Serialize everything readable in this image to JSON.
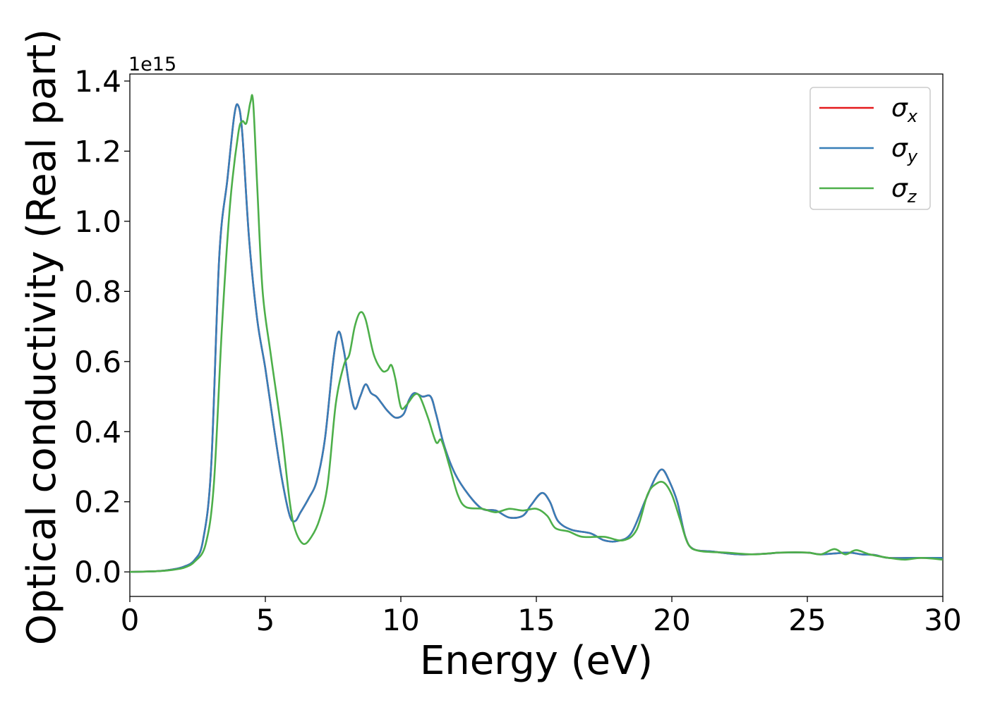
{
  "chart_data": {
    "type": "line",
    "xlabel": "Energy (eV)",
    "ylabel": "Optical conductivity (Real part)",
    "y_offset_label": "1e15",
    "xlim": [
      0,
      30
    ],
    "ylim": [
      -0.07,
      1.42
    ],
    "x_ticks": [
      0,
      5,
      10,
      15,
      20,
      25,
      30
    ],
    "x_tick_labels": [
      "0",
      "5",
      "10",
      "15",
      "20",
      "25",
      "30"
    ],
    "y_ticks": [
      0.0,
      0.2,
      0.4,
      0.6,
      0.8,
      1.0,
      1.2,
      1.4
    ],
    "y_tick_labels": [
      "0.0",
      "0.2",
      "0.4",
      "0.6",
      "0.8",
      "1.0",
      "1.2",
      "1.4"
    ],
    "grid": false,
    "legend_position": "top-right",
    "series": [
      {
        "name": "σx",
        "symbol": "σ",
        "subscript": "x",
        "color": "#e41a1c",
        "points": [
          [
            0,
            0
          ],
          [
            1,
            0.002
          ],
          [
            1.5,
            0.006
          ],
          [
            2,
            0.015
          ],
          [
            2.4,
            0.035
          ],
          [
            2.7,
            0.09
          ],
          [
            3,
            0.3
          ],
          [
            3.3,
            0.9
          ],
          [
            3.6,
            1.12
          ],
          [
            3.85,
            1.3
          ],
          [
            4,
            1.33
          ],
          [
            4.15,
            1.25
          ],
          [
            4.4,
            0.95
          ],
          [
            4.7,
            0.72
          ],
          [
            5,
            0.58
          ],
          [
            5.3,
            0.42
          ],
          [
            5.6,
            0.27
          ],
          [
            5.9,
            0.16
          ],
          [
            6.1,
            0.145
          ],
          [
            6.3,
            0.17
          ],
          [
            6.6,
            0.21
          ],
          [
            6.9,
            0.26
          ],
          [
            7.2,
            0.38
          ],
          [
            7.5,
            0.6
          ],
          [
            7.7,
            0.685
          ],
          [
            7.9,
            0.63
          ],
          [
            8.1,
            0.53
          ],
          [
            8.3,
            0.465
          ],
          [
            8.5,
            0.5
          ],
          [
            8.7,
            0.535
          ],
          [
            8.9,
            0.51
          ],
          [
            9.1,
            0.5
          ],
          [
            9.3,
            0.48
          ],
          [
            9.5,
            0.46
          ],
          [
            9.8,
            0.44
          ],
          [
            10.1,
            0.45
          ],
          [
            10.3,
            0.49
          ],
          [
            10.5,
            0.51
          ],
          [
            10.8,
            0.5
          ],
          [
            11.1,
            0.5
          ],
          [
            11.3,
            0.45
          ],
          [
            11.6,
            0.36
          ],
          [
            12,
            0.28
          ],
          [
            12.5,
            0.22
          ],
          [
            13,
            0.18
          ],
          [
            13.5,
            0.175
          ],
          [
            14,
            0.155
          ],
          [
            14.5,
            0.16
          ],
          [
            14.8,
            0.19
          ],
          [
            15.2,
            0.225
          ],
          [
            15.5,
            0.2
          ],
          [
            15.8,
            0.145
          ],
          [
            16.3,
            0.12
          ],
          [
            17,
            0.11
          ],
          [
            17.5,
            0.09
          ],
          [
            18,
            0.088
          ],
          [
            18.5,
            0.11
          ],
          [
            19,
            0.2
          ],
          [
            19.4,
            0.27
          ],
          [
            19.65,
            0.292
          ],
          [
            19.9,
            0.26
          ],
          [
            20.2,
            0.2
          ],
          [
            20.5,
            0.1
          ],
          [
            20.8,
            0.065
          ],
          [
            21.5,
            0.058
          ],
          [
            22.5,
            0.05
          ],
          [
            23.5,
            0.052
          ],
          [
            24,
            0.055
          ],
          [
            25,
            0.055
          ],
          [
            25.5,
            0.05
          ],
          [
            26.5,
            0.055
          ],
          [
            27,
            0.05
          ],
          [
            27.5,
            0.048
          ],
          [
            28,
            0.04
          ],
          [
            29,
            0.04
          ],
          [
            30,
            0.04
          ]
        ]
      },
      {
        "name": "σy",
        "symbol": "σ",
        "subscript": "y",
        "color": "#377eb8",
        "points": [
          [
            0,
            0
          ],
          [
            1,
            0.002
          ],
          [
            1.5,
            0.006
          ],
          [
            2,
            0.015
          ],
          [
            2.4,
            0.035
          ],
          [
            2.7,
            0.09
          ],
          [
            3,
            0.3
          ],
          [
            3.3,
            0.9
          ],
          [
            3.6,
            1.12
          ],
          [
            3.85,
            1.3
          ],
          [
            4,
            1.33
          ],
          [
            4.15,
            1.25
          ],
          [
            4.4,
            0.95
          ],
          [
            4.7,
            0.72
          ],
          [
            5,
            0.58
          ],
          [
            5.3,
            0.42
          ],
          [
            5.6,
            0.27
          ],
          [
            5.9,
            0.16
          ],
          [
            6.1,
            0.145
          ],
          [
            6.3,
            0.17
          ],
          [
            6.6,
            0.21
          ],
          [
            6.9,
            0.26
          ],
          [
            7.2,
            0.38
          ],
          [
            7.5,
            0.6
          ],
          [
            7.7,
            0.685
          ],
          [
            7.9,
            0.63
          ],
          [
            8.1,
            0.53
          ],
          [
            8.3,
            0.465
          ],
          [
            8.5,
            0.5
          ],
          [
            8.7,
            0.535
          ],
          [
            8.9,
            0.51
          ],
          [
            9.1,
            0.5
          ],
          [
            9.3,
            0.48
          ],
          [
            9.5,
            0.46
          ],
          [
            9.8,
            0.44
          ],
          [
            10.1,
            0.45
          ],
          [
            10.3,
            0.49
          ],
          [
            10.5,
            0.51
          ],
          [
            10.8,
            0.5
          ],
          [
            11.1,
            0.5
          ],
          [
            11.3,
            0.45
          ],
          [
            11.6,
            0.36
          ],
          [
            12,
            0.28
          ],
          [
            12.5,
            0.22
          ],
          [
            13,
            0.18
          ],
          [
            13.5,
            0.175
          ],
          [
            14,
            0.155
          ],
          [
            14.5,
            0.16
          ],
          [
            14.8,
            0.19
          ],
          [
            15.2,
            0.225
          ],
          [
            15.5,
            0.2
          ],
          [
            15.8,
            0.145
          ],
          [
            16.3,
            0.12
          ],
          [
            17,
            0.11
          ],
          [
            17.5,
            0.09
          ],
          [
            18,
            0.088
          ],
          [
            18.5,
            0.11
          ],
          [
            19,
            0.2
          ],
          [
            19.4,
            0.27
          ],
          [
            19.65,
            0.292
          ],
          [
            19.9,
            0.26
          ],
          [
            20.2,
            0.2
          ],
          [
            20.5,
            0.1
          ],
          [
            20.8,
            0.065
          ],
          [
            21.5,
            0.058
          ],
          [
            22.5,
            0.05
          ],
          [
            23.5,
            0.052
          ],
          [
            24,
            0.055
          ],
          [
            25,
            0.055
          ],
          [
            25.5,
            0.05
          ],
          [
            26.5,
            0.055
          ],
          [
            27,
            0.05
          ],
          [
            27.5,
            0.048
          ],
          [
            28,
            0.04
          ],
          [
            29,
            0.04
          ],
          [
            30,
            0.04
          ]
        ]
      },
      {
        "name": "σz",
        "symbol": "σ",
        "subscript": "z",
        "color": "#4daf4a",
        "points": [
          [
            0,
            0
          ],
          [
            1,
            0.002
          ],
          [
            1.5,
            0.005
          ],
          [
            2,
            0.012
          ],
          [
            2.4,
            0.03
          ],
          [
            2.8,
            0.08
          ],
          [
            3.1,
            0.25
          ],
          [
            3.4,
            0.7
          ],
          [
            3.7,
            1.05
          ],
          [
            4,
            1.25
          ],
          [
            4.15,
            1.285
          ],
          [
            4.3,
            1.28
          ],
          [
            4.45,
            1.34
          ],
          [
            4.55,
            1.34
          ],
          [
            4.7,
            1.1
          ],
          [
            4.9,
            0.8
          ],
          [
            5.2,
            0.62
          ],
          [
            5.6,
            0.4
          ],
          [
            5.9,
            0.2
          ],
          [
            6.1,
            0.12
          ],
          [
            6.4,
            0.08
          ],
          [
            6.7,
            0.1
          ],
          [
            7,
            0.15
          ],
          [
            7.3,
            0.25
          ],
          [
            7.6,
            0.48
          ],
          [
            7.9,
            0.59
          ],
          [
            8.1,
            0.62
          ],
          [
            8.3,
            0.7
          ],
          [
            8.5,
            0.74
          ],
          [
            8.7,
            0.72
          ],
          [
            9,
            0.62
          ],
          [
            9.3,
            0.575
          ],
          [
            9.5,
            0.575
          ],
          [
            9.65,
            0.59
          ],
          [
            9.8,
            0.55
          ],
          [
            10,
            0.47
          ],
          [
            10.2,
            0.475
          ],
          [
            10.5,
            0.505
          ],
          [
            10.7,
            0.5
          ],
          [
            11,
            0.44
          ],
          [
            11.3,
            0.37
          ],
          [
            11.5,
            0.375
          ],
          [
            11.8,
            0.3
          ],
          [
            12.1,
            0.22
          ],
          [
            12.4,
            0.185
          ],
          [
            13,
            0.18
          ],
          [
            13.5,
            0.17
          ],
          [
            14,
            0.18
          ],
          [
            14.5,
            0.175
          ],
          [
            15,
            0.18
          ],
          [
            15.4,
            0.16
          ],
          [
            15.7,
            0.125
          ],
          [
            16.2,
            0.115
          ],
          [
            16.7,
            0.1
          ],
          [
            17.5,
            0.1
          ],
          [
            18.2,
            0.09
          ],
          [
            18.7,
            0.12
          ],
          [
            19.1,
            0.22
          ],
          [
            19.4,
            0.25
          ],
          [
            19.7,
            0.255
          ],
          [
            20,
            0.22
          ],
          [
            20.3,
            0.15
          ],
          [
            20.6,
            0.08
          ],
          [
            21,
            0.06
          ],
          [
            22,
            0.055
          ],
          [
            23,
            0.05
          ],
          [
            24,
            0.055
          ],
          [
            25,
            0.055
          ],
          [
            25.5,
            0.05
          ],
          [
            26,
            0.065
          ],
          [
            26.4,
            0.05
          ],
          [
            26.8,
            0.062
          ],
          [
            27.3,
            0.05
          ],
          [
            28,
            0.04
          ],
          [
            28.6,
            0.035
          ],
          [
            29.2,
            0.04
          ],
          [
            30,
            0.035
          ]
        ]
      }
    ]
  }
}
